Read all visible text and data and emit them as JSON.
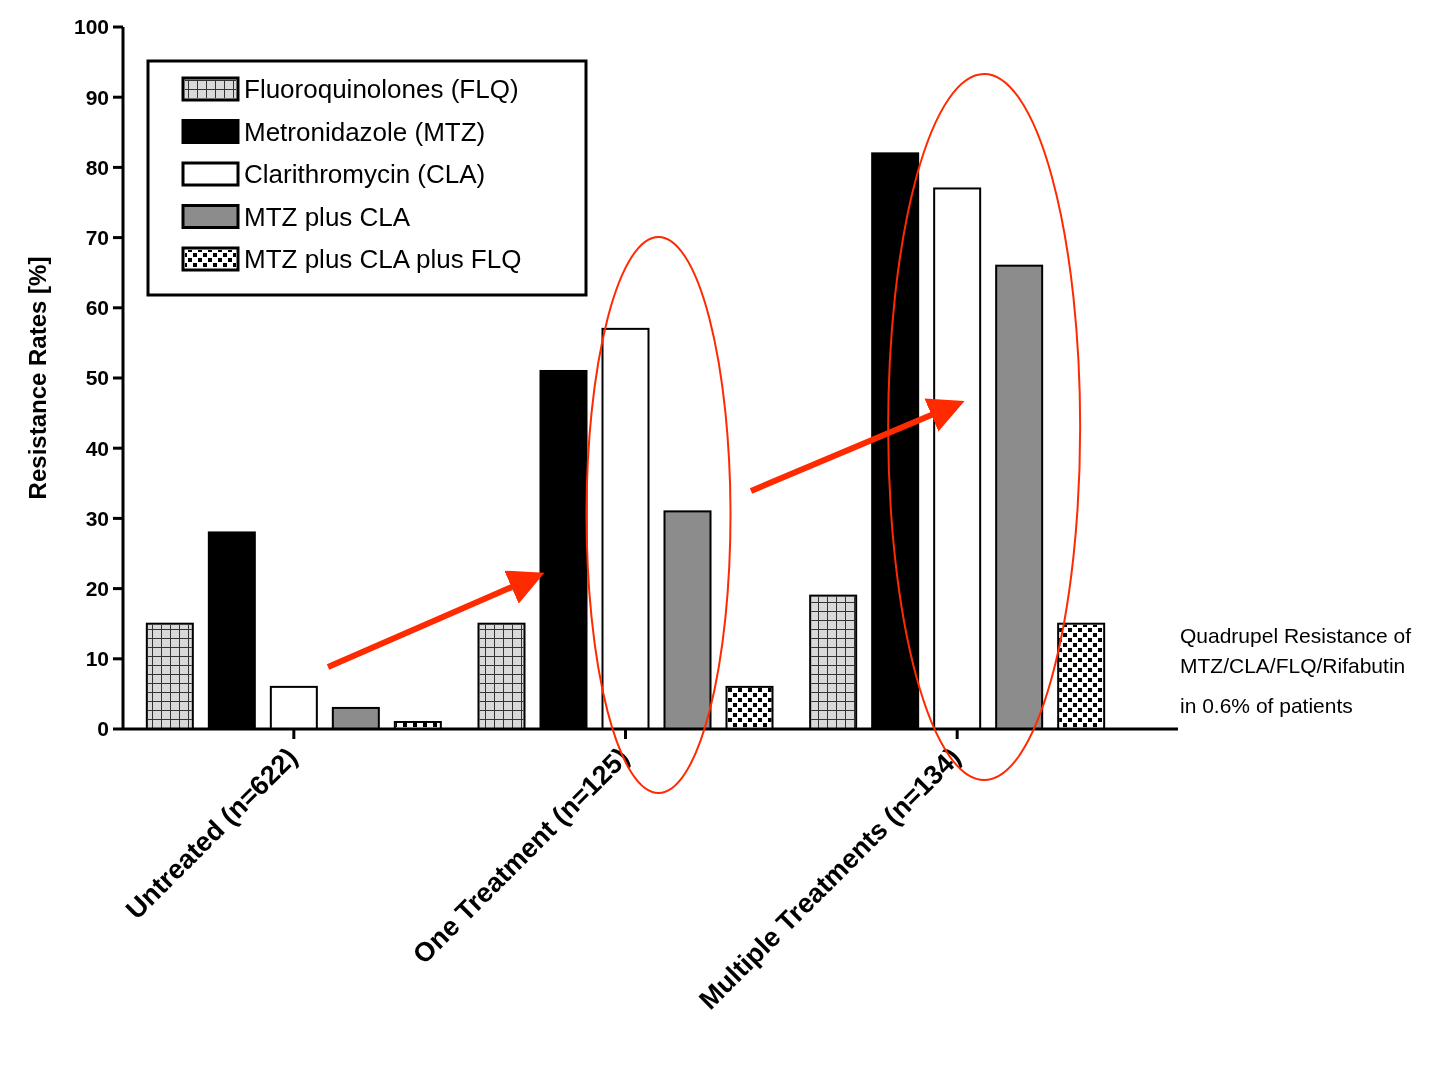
{
  "chart_data": {
    "type": "bar",
    "ylabel": "Resistance Rates [%]",
    "categories": [
      "Untreated (n=622)",
      "One Treatment (n=125)",
      "Multiple Treatments (n=134)"
    ],
    "series": [
      {
        "name": "Fluoroquinolones (FLQ)",
        "color": "#d9d9d9",
        "values": [
          15,
          15,
          19
        ]
      },
      {
        "name": "Metronidazole (MTZ)",
        "color": "#000000",
        "values": [
          28,
          51,
          82
        ]
      },
      {
        "name": "Clarithromycin (CLA)",
        "color": "#ffffff",
        "values": [
          6,
          57,
          77
        ]
      },
      {
        "name": "MTZ plus CLA",
        "color": "#8c8c8c",
        "values": [
          3,
          31,
          66
        ]
      },
      {
        "name": "MTZ plus CLA plus FLQ",
        "color": "#ffffff",
        "values": [
          1,
          6,
          15
        ]
      }
    ],
    "ylim": [
      0,
      100
    ],
    "yticks": [
      0,
      10,
      20,
      30,
      40,
      50,
      60,
      70,
      80,
      90,
      100
    ],
    "legend": "top left",
    "annotations": [
      "Quadrupel Resistance of MTZ/CLA/FLQ/Rifabutin",
      "in 0.6% of patients"
    ]
  }
}
